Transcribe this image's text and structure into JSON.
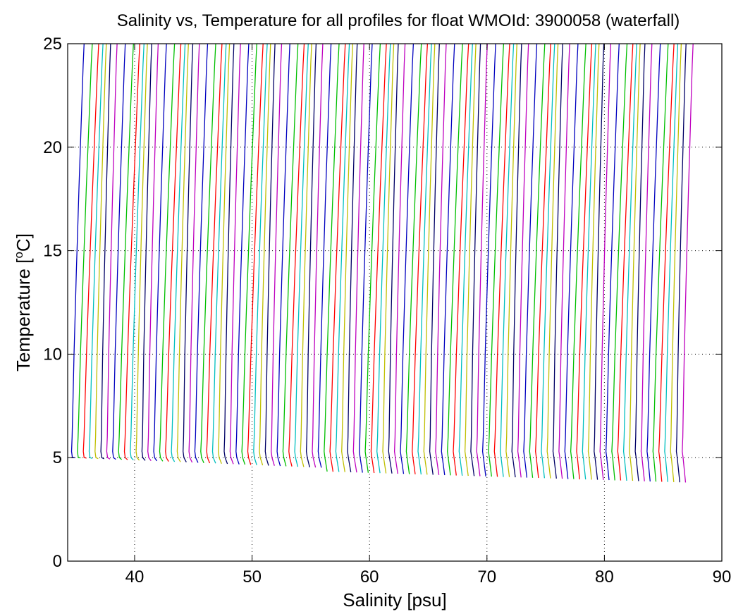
{
  "chart_data": {
    "type": "line",
    "title": "Salinity vs, Temperature for all profiles for float WMOId: 3900058 (waterfall)",
    "xlabel": "Salinity [psu]",
    "ylabel_main": "Temperature [",
    "ylabel_sup": "o",
    "ylabel_tail": "C]",
    "xlim": [
      34.3,
      90
    ],
    "ylim": [
      0,
      25
    ],
    "xticks": [
      40,
      50,
      60,
      70,
      80,
      90
    ],
    "yticks": [
      0,
      5,
      10,
      15,
      20,
      25
    ],
    "grid": "dotted",
    "series_colors": [
      "#0000bf",
      "#00bf00",
      "#ff0000",
      "#00bfbf",
      "#bfbf00",
      "#000066",
      "#bf00bf"
    ],
    "series_count": 105,
    "series_offset_step": 0.5,
    "base_profile": {
      "temperature": [
        25,
        24,
        22,
        20,
        18,
        16,
        14,
        12,
        10,
        8,
        7,
        6,
        5.3,
        5.0,
        4.8
      ],
      "salinity": [
        35.7,
        35.62,
        35.5,
        35.38,
        35.26,
        35.15,
        35.04,
        34.94,
        34.84,
        34.76,
        34.72,
        34.68,
        34.63,
        34.7,
        34.9
      ]
    },
    "bottom_temperature_start": 4.7,
    "bottom_temperature_end": 3.8,
    "bottom_step_salinity": 57.2,
    "bottom_step_drop": 0.3
  }
}
